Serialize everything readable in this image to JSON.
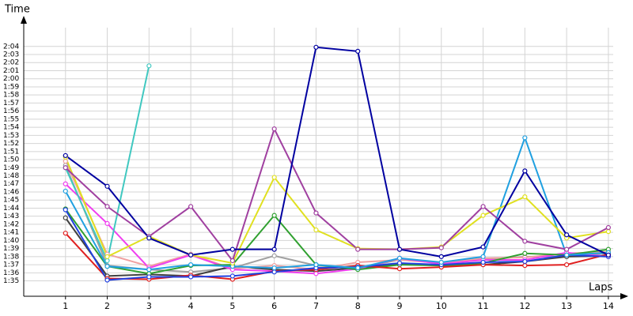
{
  "chart_data": {
    "type": "line",
    "y_label": "Time",
    "x_label": "Laps",
    "x": [
      1,
      2,
      3,
      4,
      5,
      6,
      7,
      8,
      9,
      10,
      11,
      12,
      13,
      14
    ],
    "xlim": [
      0,
      14.4
    ],
    "xticks": [
      1,
      2,
      3,
      4,
      5,
      6,
      7,
      8,
      9,
      10,
      11,
      12,
      13,
      14
    ],
    "ylim": [
      93.1,
      127.3
    ],
    "yticks": [
      {
        "value": 95,
        "label": "1:35"
      },
      {
        "value": 96,
        "label": "1:36"
      },
      {
        "value": 97,
        "label": "1:37"
      },
      {
        "value": 98,
        "label": "1:38"
      },
      {
        "value": 99,
        "label": "1:39"
      },
      {
        "value": 100,
        "label": "1:40"
      },
      {
        "value": 101,
        "label": "1:41"
      },
      {
        "value": 102,
        "label": "1:42"
      },
      {
        "value": 103,
        "label": "1:43"
      },
      {
        "value": 104,
        "label": "1:44"
      },
      {
        "value": 105,
        "label": "1:45"
      },
      {
        "value": 106,
        "label": "1:46"
      },
      {
        "value": 107,
        "label": "1:47"
      },
      {
        "value": 108,
        "label": "1:48"
      },
      {
        "value": 109,
        "label": "1:49"
      },
      {
        "value": 110,
        "label": "1:50"
      },
      {
        "value": 111,
        "label": "1:51"
      },
      {
        "value": 112,
        "label": "1:52"
      },
      {
        "value": 113,
        "label": "1:53"
      },
      {
        "value": 114,
        "label": "1:54"
      },
      {
        "value": 115,
        "label": "1:55"
      },
      {
        "value": 116,
        "label": "1:56"
      },
      {
        "value": 117,
        "label": "1:57"
      },
      {
        "value": 118,
        "label": "1:58"
      },
      {
        "value": 119,
        "label": "1:59"
      },
      {
        "value": 120,
        "label": "2:00"
      },
      {
        "value": 121,
        "label": "2:01"
      },
      {
        "value": 122,
        "label": "2:02"
      },
      {
        "value": 123,
        "label": "2:03"
      },
      {
        "value": 124,
        "label": "2:04"
      }
    ],
    "grid": true,
    "series": [
      {
        "color": "#a0a0a0",
        "values": [
          109.3,
          96.9,
          96.4,
          96.1,
          96.6,
          98.1,
          96.9,
          96.6,
          97.6,
          97.3,
          97.6,
          98.0,
          98.0,
          98.4
        ]
      },
      {
        "color": "#404040",
        "values": [
          102.8,
          95.6,
          95.8,
          95.6,
          96.8,
          96.4,
          96.2,
          96.6,
          97.1,
          96.9,
          97.0,
          97.4,
          98.0,
          98.1
        ]
      },
      {
        "color": "#f0a0a0",
        "values": [
          109.8,
          98.3,
          96.8,
          98.3,
          96.5,
          96.9,
          96.4,
          97.3,
          97.6,
          97.2,
          97.8,
          97.9,
          98.4,
          98.6
        ]
      },
      {
        "color": "#f040f0",
        "values": [
          107.0,
          102.1,
          96.6,
          98.2,
          96.4,
          96.2,
          95.9,
          96.5,
          97.8,
          97.1,
          97.6,
          97.6,
          98.5,
          98.0
        ]
      },
      {
        "color": "#30a030",
        "values": [
          103.9,
          96.8,
          95.9,
          96.9,
          97.0,
          103.1,
          97.0,
          96.4,
          97.0,
          96.9,
          97.2,
          98.4,
          98.2,
          98.9
        ]
      },
      {
        "color": "#e02020",
        "values": [
          100.9,
          95.3,
          95.2,
          95.7,
          95.2,
          96.2,
          96.4,
          96.9,
          96.5,
          96.7,
          97.0,
          96.9,
          97.0,
          98.3
        ]
      },
      {
        "color": "#2040e0",
        "values": [
          103.8,
          95.1,
          95.5,
          95.5,
          95.6,
          96.1,
          96.6,
          96.7,
          97.2,
          97.0,
          97.3,
          97.4,
          98.2,
          98.0
        ]
      },
      {
        "color": "#40c8c0",
        "values": [
          109.0,
          97.5,
          121.6,
          null,
          null,
          null,
          null,
          null,
          null,
          null,
          null,
          null,
          null,
          null
        ]
      },
      {
        "color": "#20a0e0",
        "values": [
          106.1,
          96.8,
          96.4,
          97.0,
          96.8,
          96.6,
          97.0,
          96.6,
          97.8,
          97.3,
          98.0,
          112.7,
          98.2,
          98.5
        ]
      },
      {
        "color": "#e0e020",
        "values": [
          110.3,
          98.0,
          100.5,
          98.2,
          97.2,
          107.8,
          101.3,
          99.0,
          98.9,
          99.2,
          103.1,
          105.4,
          100.3,
          101.1
        ]
      },
      {
        "color": "#a040a0",
        "values": [
          109.0,
          104.2,
          100.5,
          104.2,
          97.5,
          113.8,
          103.4,
          98.9,
          98.9,
          99.1,
          104.2,
          99.9,
          98.9,
          101.6
        ]
      },
      {
        "color": "#0000a0",
        "values": [
          110.5,
          106.7,
          100.3,
          98.2,
          98.9,
          98.9,
          123.9,
          123.4,
          98.9,
          98.0,
          99.2,
          108.6,
          100.7,
          98.2
        ]
      }
    ]
  }
}
